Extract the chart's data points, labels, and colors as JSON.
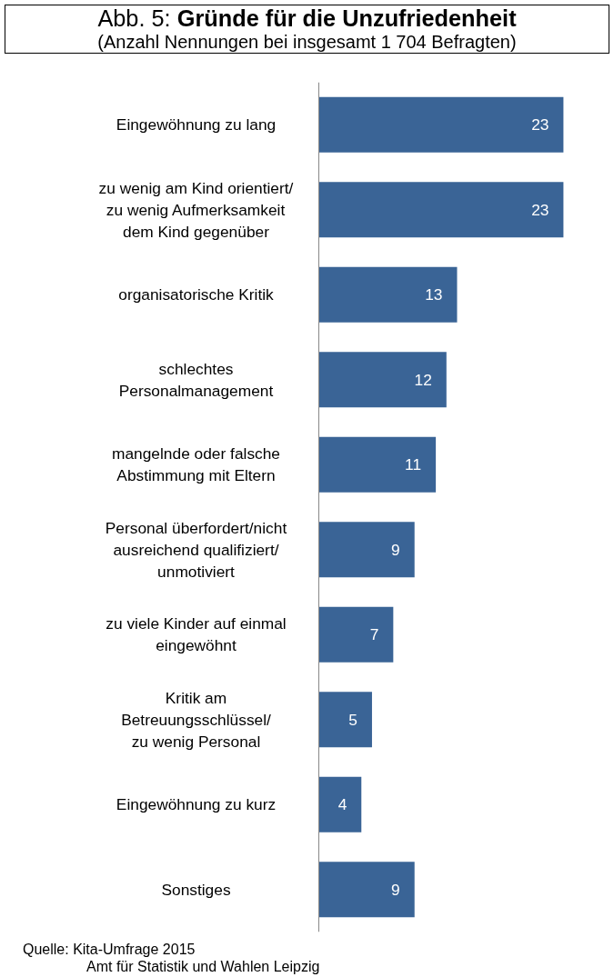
{
  "chart_data": {
    "type": "bar",
    "orientation": "horizontal",
    "title": "Abb. 5: Gründe für die Unzufriedenheit",
    "subtitle": "(Anzahl Nennungen bei insgesamt 1 704 Befragten)",
    "categories": [
      "Eingewöhnung zu lang",
      "zu wenig am Kind orientiert/\nzu wenig Aufmerksamkeit\ndem Kind gegenüber",
      "organisatorische Kritik",
      "schlechtes\nPersonalmanagement",
      "mangelnde oder falsche\nAbstimmung mit Eltern",
      "Personal überfordert/nicht\nausreichend qualifiziert/\nunmotiviert",
      "zu viele Kinder auf einmal\neingewöhnt",
      "Kritik am\nBetreuungsschlüssel/\nzu wenig Personal",
      "Eingewöhnung zu kurz",
      "Sonstiges"
    ],
    "values": [
      23,
      23,
      13,
      12,
      11,
      9,
      7,
      5,
      4,
      9
    ],
    "color": "#3a6496",
    "data_labels": true,
    "grid": false,
    "annotations": [
      "Quelle:  Kita-Umfrage 2015",
      "Amt für Statistik und Wahlen Leipzig"
    ]
  }
}
